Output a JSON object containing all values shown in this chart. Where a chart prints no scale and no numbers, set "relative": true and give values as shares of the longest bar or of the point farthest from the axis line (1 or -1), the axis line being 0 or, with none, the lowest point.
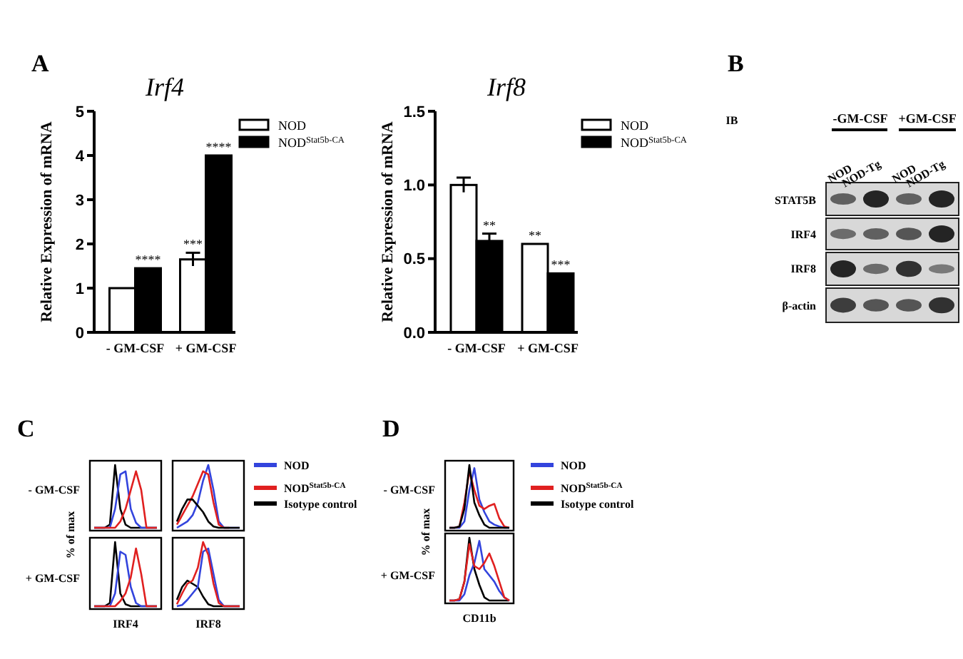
{
  "chart_data": [
    {
      "type": "bar",
      "title": "Irf4",
      "ylabel": "Relative Expression of mRNA",
      "categories": [
        "- GM-CSF",
        "+ GM-CSF"
      ],
      "legend": "right",
      "ylim": [
        0,
        5
      ],
      "yticks": [
        0,
        1,
        2,
        3,
        4,
        5
      ],
      "series": [
        {
          "name": "NOD",
          "color": "#ffffff",
          "values": [
            1.0,
            1.65
          ],
          "errors": [
            null,
            0.15
          ]
        },
        {
          "name": "NOD$^{Stat5b-CA}$",
          "color": "#000000",
          "values": [
            1.45,
            4.0
          ]
        }
      ],
      "annotations": [
        "A",
        {
          "text": "****",
          "x": "- GM-CSF",
          "y": 1.45
        },
        {
          "text": "***",
          "x": "+ GM-CSF",
          "y": 1.8
        },
        {
          "text": "****",
          "x": "+ GM-CSF",
          "y": 4.0
        }
      ]
    },
    {
      "type": "bar",
      "title": "Irf8",
      "ylabel": "Relative Expression of mRNA",
      "categories": [
        "- GM-CSF",
        "+ GM-CSF"
      ],
      "legend": "right",
      "ylim": [
        0,
        1.5
      ],
      "yticks": [
        {
          "value": 0,
          "label": "0.0"
        },
        {
          "value": 0.5,
          "label": "0.5"
        },
        {
          "value": 1,
          "label": "1.0"
        },
        {
          "value": 1.5,
          "label": "1.5"
        }
      ],
      "series": [
        {
          "name": "NOD",
          "color": "#ffffff",
          "values": [
            1.0,
            0.6
          ],
          "errors": [
            0.05,
            null
          ]
        },
        {
          "name": "NOD$^{Stat5b-CA}$",
          "color": "#000000",
          "values": [
            0.62,
            0.4
          ],
          "errors": [
            0.05,
            null
          ]
        }
      ],
      "annotations": [
        {
          "text": "**",
          "x": "- GM-CSF",
          "y": 0.67
        },
        {
          "text": "**",
          "x": "+ GM-CSF",
          "y": 0.6
        },
        {
          "text": "***",
          "x": "+ GM-CSF",
          "y": 0.4
        }
      ]
    },
    {
      "type": "other",
      "annotations": [
        "B",
        "IB",
        "-GM-CSF",
        "+GM-CSF",
        "NOD",
        "NOD-Tg",
        "NOD",
        "NOD-Tg",
        "STAT5B",
        "IRF4",
        "IRF8",
        "β-actin"
      ]
    },
    {
      "type": "line",
      "relative": true,
      "ylabel": "% of max",
      "categories": [
        null,
        null,
        null,
        null,
        null,
        null,
        null,
        null,
        null,
        null,
        null,
        null,
        null
      ],
      "annotations": [
        "C",
        "- GM-CSF"
      ],
      "series": [
        {
          "color": "#000000",
          "values": [
            0,
            0,
            0,
            0.05,
            1,
            0.3,
            0.05,
            0,
            0,
            0,
            0,
            0,
            0
          ]
        },
        {
          "color": "#3344dd",
          "values": [
            0,
            0,
            0,
            0,
            0.3,
            0.85,
            0.9,
            0.3,
            0.08,
            0,
            0,
            0,
            0
          ]
        },
        {
          "color": "#e02020",
          "values": [
            0,
            0,
            0,
            0,
            0,
            0.1,
            0.3,
            0.6,
            0.9,
            0.6,
            0,
            0,
            0
          ]
        }
      ]
    },
    {
      "type": "line",
      "relative": true,
      "legend": "right",
      "categories": [
        null,
        null,
        null,
        null,
        null,
        null,
        null,
        null,
        null,
        null,
        null,
        null,
        null
      ],
      "series": [
        {
          "name": "NOD",
          "color": "#3344dd",
          "values": [
            0,
            0.05,
            0.1,
            0.2,
            0.4,
            0.75,
            1,
            0.6,
            0.1,
            0,
            0,
            0,
            0
          ]
        },
        {
          "name": "NOD$^{Stat5b-CA}$",
          "color": "#e02020",
          "values": [
            0.05,
            0.2,
            0.35,
            0.5,
            0.7,
            0.9,
            0.85,
            0.4,
            0.05,
            0,
            0,
            null,
            null
          ]
        },
        {
          "name": "Isotype control",
          "color": "#000000",
          "values": [
            0.1,
            0.3,
            0.45,
            0.45,
            0.35,
            0.25,
            0.1,
            0.02,
            0,
            0,
            0,
            0,
            0
          ]
        }
      ]
    },
    {
      "type": "line",
      "relative": true,
      "xlabel": "IRF4",
      "categories": [
        null,
        null,
        null,
        null,
        null,
        null,
        null,
        null,
        null,
        null,
        null,
        null,
        null
      ],
      "annotations": [
        "+ GM-CSF"
      ],
      "series": [
        {
          "color": "#000000",
          "values": [
            0,
            0,
            0,
            0.05,
            1,
            0.2,
            0.03,
            0,
            0,
            0,
            0,
            0,
            0
          ]
        },
        {
          "color": "#3344dd",
          "values": [
            0,
            0,
            0,
            0,
            0.2,
            0.85,
            0.8,
            0.3,
            0.05,
            0,
            0,
            0,
            0
          ]
        },
        {
          "color": "#e02020",
          "values": [
            0,
            0,
            0,
            0,
            0,
            0.08,
            0.2,
            0.45,
            0.9,
            0.5,
            0,
            0,
            0
          ]
        }
      ]
    },
    {
      "type": "line",
      "relative": true,
      "xlabel": "IRF8",
      "categories": [
        null,
        null,
        null,
        null,
        null,
        null,
        null,
        null,
        null,
        null,
        null,
        null,
        null
      ],
      "series": [
        {
          "color": "#000000",
          "values": [
            0.1,
            0.3,
            0.4,
            0.35,
            0.3,
            0.15,
            0.03,
            0,
            0,
            0,
            0,
            0,
            0
          ]
        },
        {
          "color": "#3344dd",
          "values": [
            0,
            0.02,
            0.1,
            0.2,
            0.3,
            0.85,
            0.9,
            0.5,
            0.1,
            0,
            0,
            0,
            0
          ]
        },
        {
          "color": "#e02020",
          "values": [
            0.03,
            0.2,
            0.35,
            0.4,
            0.6,
            1,
            0.8,
            0.35,
            0.05,
            0,
            0,
            0,
            0
          ]
        }
      ]
    },
    {
      "type": "line",
      "relative": true,
      "ylabel": "% of max",
      "legend": "right",
      "categories": [
        null,
        null,
        null,
        null,
        null,
        null,
        null,
        null,
        null,
        null,
        null,
        null,
        null
      ],
      "annotations": [
        "D",
        "- GM-CSF"
      ],
      "series": [
        {
          "name": "NOD",
          "color": "#3344dd",
          "values": [
            0,
            0,
            0,
            0.1,
            0.6,
            0.95,
            0.45,
            0.25,
            0.1,
            0.05,
            0.02,
            0,
            0
          ]
        },
        {
          "name": "NOD$^{Stat5b-CA}$",
          "color": "#e02020",
          "values": [
            0,
            0,
            0.02,
            0.4,
            0.9,
            0.6,
            0.35,
            0.3,
            0.35,
            0.38,
            0.15,
            0.02,
            0
          ]
        },
        {
          "name": "Isotype control",
          "color": "#000000",
          "values": [
            0,
            0,
            0.02,
            0.3,
            1,
            0.4,
            0.2,
            0.05,
            0,
            0,
            0,
            0,
            0
          ]
        }
      ]
    },
    {
      "type": "line",
      "relative": true,
      "xlabel": "CD11b",
      "categories": [
        null,
        null,
        null,
        null,
        null,
        null,
        null,
        null,
        null,
        null,
        null,
        null,
        null
      ],
      "annotations": [
        "+ GM-CSF"
      ],
      "series": [
        {
          "color": "#000000",
          "values": [
            0,
            0,
            0.02,
            0.3,
            1,
            0.5,
            0.25,
            0.05,
            0,
            0,
            0,
            0,
            0
          ]
        },
        {
          "color": "#3344dd",
          "values": [
            0,
            0,
            0,
            0.1,
            0.4,
            0.6,
            0.95,
            0.5,
            0.4,
            0.3,
            0.15,
            0.05,
            0
          ]
        },
        {
          "color": "#e02020",
          "values": [
            0,
            0,
            0.02,
            0.3,
            0.9,
            0.55,
            0.5,
            0.6,
            0.75,
            0.55,
            0.3,
            0.05,
            0
          ]
        }
      ]
    }
  ]
}
